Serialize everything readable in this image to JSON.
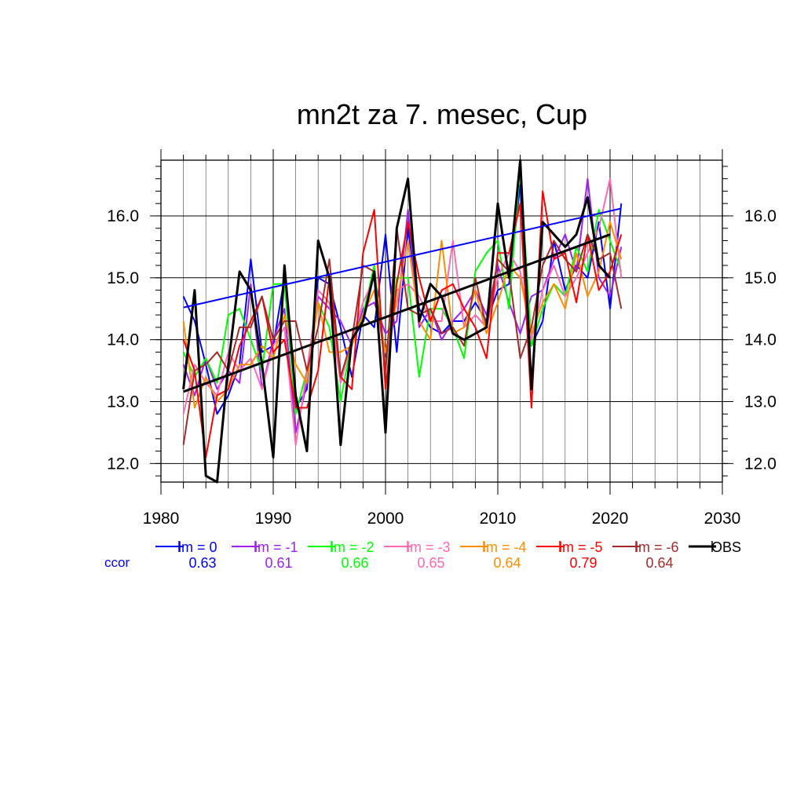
{
  "chart_data": {
    "type": "line",
    "title": "mn2t za 7. mesec, Cup",
    "xlabel": "",
    "ylabel": "",
    "xlim": [
      1980,
      2030
    ],
    "ylim": [
      11.7,
      16.9
    ],
    "x_ticks": [
      1980,
      1990,
      2000,
      2010,
      2020,
      2030
    ],
    "x_tick_labels": [
      "1980",
      "1990",
      "2000",
      "2010",
      "2020",
      "2030"
    ],
    "y_ticks": [
      12.0,
      13.0,
      14.0,
      15.0,
      16.0
    ],
    "y_tick_labels": [
      "12.0",
      "13.0",
      "14.0",
      "15.0",
      "16.0"
    ],
    "grid": true,
    "ccor_label": "ccor",
    "series": [
      {
        "name": "lm = 0",
        "color": "#0000ff",
        "ccor": "0.63",
        "start_year": 1982,
        "values": [
          14.7,
          14.3,
          13.6,
          12.8,
          13.1,
          13.6,
          15.3,
          13.8,
          13.9,
          15.0,
          12.9,
          13.2,
          15.0,
          14.9,
          14.2,
          13.4,
          14.4,
          14.2,
          15.7,
          13.8,
          15.8,
          14.5,
          14.2,
          14.1,
          14.3,
          14.3,
          14.6,
          14.3,
          14.8,
          14.9,
          16.5,
          13.9,
          14.3,
          15.6,
          14.8,
          15.2,
          15.0,
          15.9,
          14.5,
          16.2
        ]
      },
      {
        "name": "lm = -1",
        "color": "#a020f0",
        "ccor": "0.61",
        "start_year": 1982,
        "values": [
          13.6,
          13.1,
          13.7,
          13.2,
          13.5,
          13.3,
          14.9,
          13.2,
          14.0,
          14.5,
          12.5,
          13.3,
          14.7,
          14.5,
          14.3,
          13.9,
          14.5,
          14.6,
          14.1,
          14.3,
          16.1,
          14.2,
          14.5,
          14.0,
          14.3,
          14.5,
          14.8,
          14.4,
          15.2,
          14.6,
          14.1,
          14.7,
          14.8,
          15.3,
          15.7,
          15.1,
          16.6,
          15.0,
          14.7,
          15.5
        ]
      },
      {
        "name": "lm = -2",
        "color": "#00ff00",
        "ccor": "0.66",
        "start_year": 1982,
        "values": [
          13.8,
          13.4,
          13.7,
          13.3,
          14.4,
          14.5,
          14.0,
          13.5,
          14.9,
          14.9,
          12.8,
          13.5,
          14.6,
          14.2,
          13.0,
          14.0,
          14.4,
          15.2,
          13.5,
          15.0,
          15.0,
          13.4,
          14.5,
          14.5,
          14.2,
          13.7,
          15.1,
          15.4,
          15.6,
          14.5,
          16.8,
          13.9,
          14.5,
          14.9,
          14.7,
          15.5,
          15.1,
          16.1,
          15.6,
          15.1
        ]
      },
      {
        "name": "lm = -3",
        "color": "#ff69b4",
        "ccor": "0.65",
        "start_year": 1982,
        "values": [
          12.8,
          13.6,
          13.3,
          13.1,
          13.8,
          13.5,
          13.7,
          13.2,
          13.9,
          14.2,
          12.3,
          13.5,
          14.8,
          14.6,
          13.3,
          14.0,
          14.6,
          15.0,
          13.6,
          14.8,
          14.9,
          14.7,
          14.3,
          14.3,
          15.6,
          14.2,
          14.4,
          14.2,
          15.0,
          15.4,
          15.1,
          14.0,
          14.8,
          15.2,
          14.7,
          15.0,
          15.4,
          15.8,
          16.6,
          15.0
        ]
      },
      {
        "name": "lm = -4",
        "color": "#ff8c00",
        "ccor": "0.64",
        "start_year": 1982,
        "values": [
          14.3,
          12.9,
          13.4,
          13.0,
          13.2,
          13.6,
          13.6,
          13.9,
          13.7,
          14.4,
          13.6,
          13.3,
          14.6,
          13.8,
          13.8,
          13.9,
          14.4,
          14.8,
          13.8,
          14.6,
          15.6,
          14.3,
          14.0,
          15.6,
          14.1,
          14.2,
          14.8,
          14.1,
          14.6,
          15.2,
          15.0,
          14.1,
          14.6,
          14.9,
          14.5,
          15.4,
          14.7,
          15.1,
          15.9,
          15.3
        ]
      },
      {
        "name": "lm = -5",
        "color": "#ff0000",
        "ccor": "0.79",
        "start_year": 1982,
        "values": [
          14.0,
          13.5,
          12.1,
          13.1,
          13.2,
          13.9,
          14.3,
          14.7,
          13.8,
          14.0,
          12.9,
          12.9,
          13.5,
          15.0,
          13.4,
          13.2,
          15.4,
          16.1,
          13.2,
          14.9,
          15.9,
          15.0,
          14.3,
          14.8,
          14.9,
          14.5,
          14.2,
          13.7,
          15.4,
          15.4,
          16.2,
          12.9,
          16.4,
          15.3,
          15.4,
          14.6,
          15.7,
          14.8,
          15.1,
          15.7
        ]
      },
      {
        "name": "lm = -6",
        "color": "#a52a2a",
        "ccor": "0.64",
        "start_year": 1982,
        "values": [
          12.3,
          13.5,
          13.6,
          13.8,
          13.5,
          14.2,
          14.2,
          14.7,
          14.0,
          14.3,
          14.3,
          13.5,
          14.2,
          15.3,
          13.4,
          14.0,
          15.2,
          15.1,
          13.5,
          15.8,
          14.5,
          14.4,
          14.5,
          14.1,
          14.2,
          13.9,
          15.0,
          14.2,
          15.3,
          15.1,
          13.7,
          14.2,
          15.2,
          15.6,
          15.3,
          15.1,
          15.7,
          15.3,
          15.4,
          14.5
        ]
      },
      {
        "name": "OBS",
        "color": "#000000",
        "ccor": "",
        "start_year": 1982,
        "values": [
          13.2,
          14.8,
          11.8,
          11.7,
          13.6,
          15.1,
          14.8,
          13.6,
          12.1,
          15.2,
          13.1,
          12.2,
          15.6,
          15.0,
          12.3,
          14.0,
          14.3,
          15.1,
          12.5,
          15.8,
          16.6,
          14.3,
          14.9,
          14.7,
          14.1,
          14.0,
          14.1,
          14.2,
          16.2,
          15.0,
          16.9,
          13.2,
          15.9,
          15.7,
          15.5,
          15.7,
          16.3,
          15.2,
          15.0
        ]
      }
    ],
    "trends": [
      {
        "series": "lm = 0",
        "color": "#0000ff",
        "x": [
          1982,
          2021
        ],
        "y": [
          14.52,
          16.12
        ]
      },
      {
        "series": "OBS",
        "color": "#000000",
        "x": [
          1982,
          2020
        ],
        "y": [
          13.16,
          15.7
        ]
      }
    ]
  }
}
